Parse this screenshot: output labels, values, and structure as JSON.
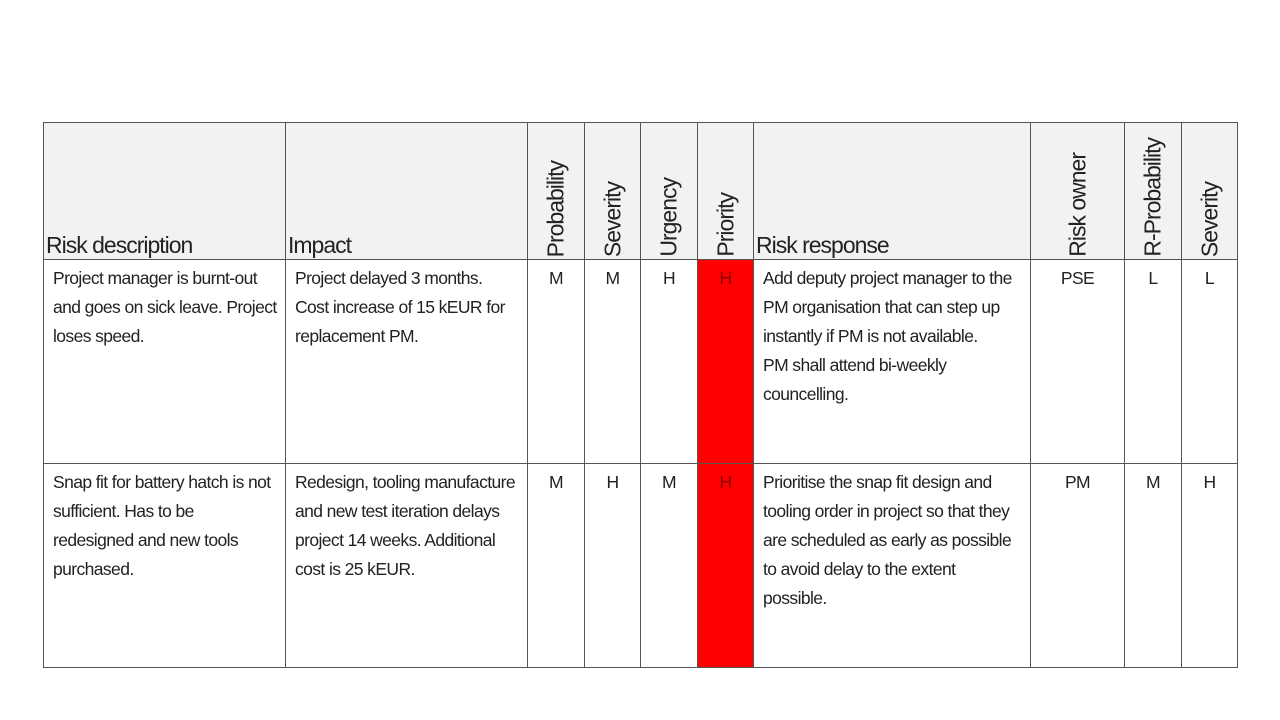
{
  "table": {
    "header": [
      "Risk description",
      "Impact",
      "Probability",
      "Severity",
      "Urgency",
      "Priority",
      "Risk response",
      "Risk owner",
      "R-Probability",
      "Severity"
    ],
    "rows": [
      [
        "Project manager is burnt-out and goes on sick leave. Project loses speed.",
        "Project delayed 3 months. Cost increase of 15 kEUR for replacement PM.",
        "M",
        "M",
        "H",
        "H",
        "Add deputy project manager to the PM organisation that can step up instantly if PM is not available.\nPM shall attend bi-weekly councelling.",
        "PSE",
        "L",
        "L"
      ],
      [
        "Snap fit for battery hatch is not sufficient. Has to be redesigned and new tools purchased.",
        "Redesign, tooling manufacture and new test iteration delays project 14 weeks. Additional cost is 25 kEUR.",
        "M",
        "H",
        "M",
        "H",
        "Prioritise the snap fit design and tooling order in project so that they are scheduled as early as possible to avoid delay to the extent possible.",
        "PM",
        "M",
        "H"
      ]
    ]
  }
}
